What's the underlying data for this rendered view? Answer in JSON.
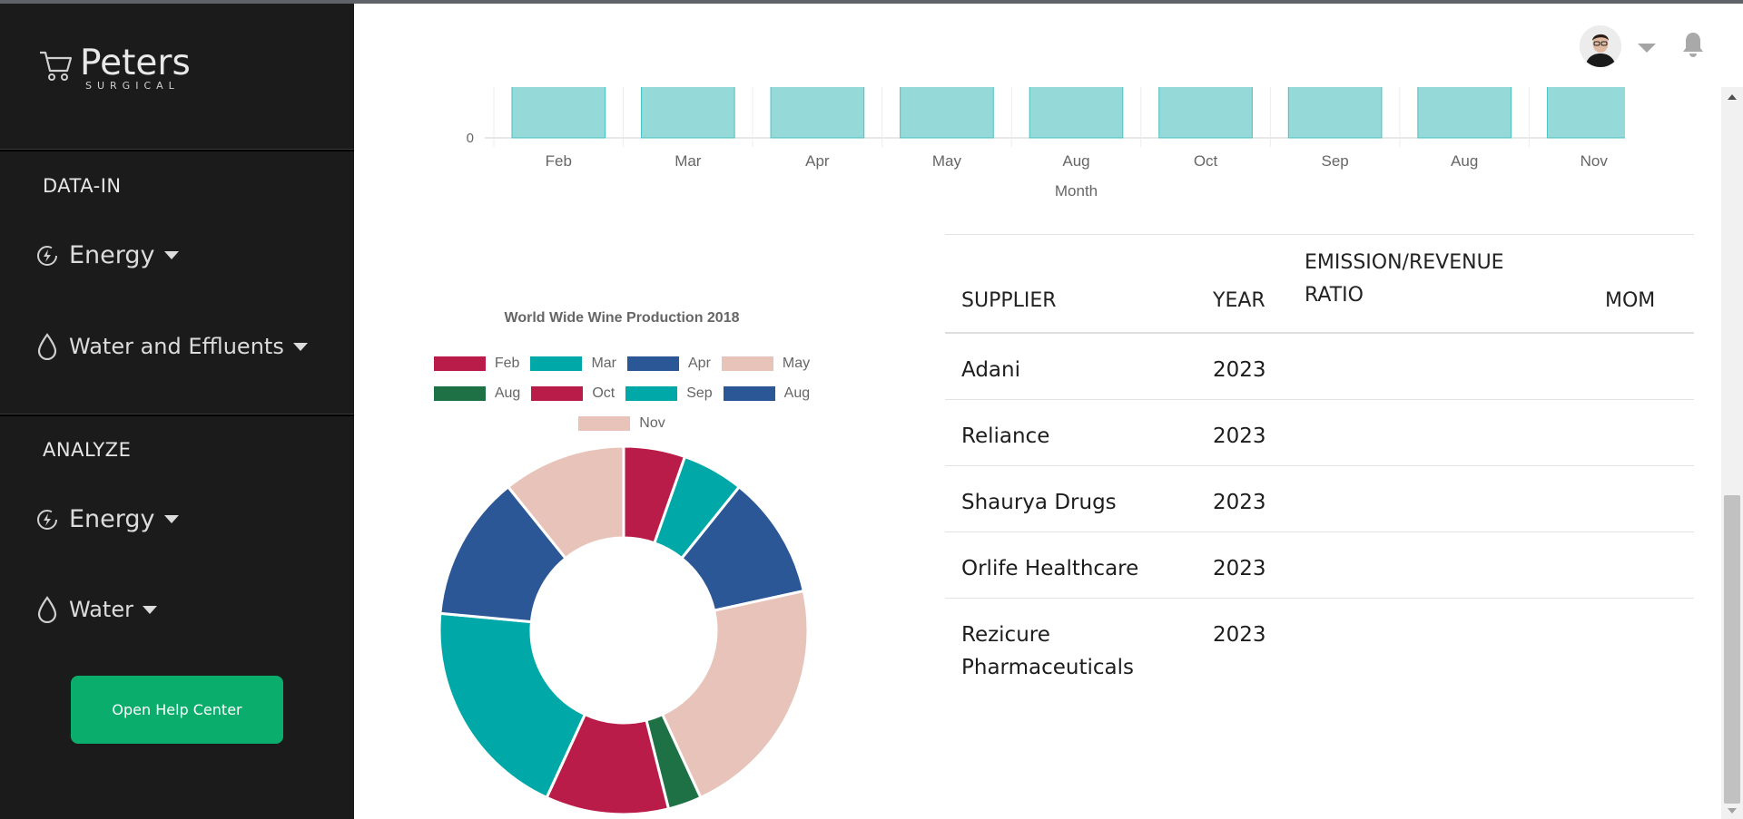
{
  "brand": {
    "name": "Peters",
    "sub": "SURGICAL"
  },
  "sidebar": {
    "sections": [
      {
        "title": "DATA-IN",
        "items": [
          {
            "label": "Energy",
            "icon": "energy-icon"
          },
          {
            "label": "Water and Effluents",
            "icon": "water-drop-icon"
          }
        ]
      },
      {
        "title": "ANALYZE",
        "items": [
          {
            "label": "Energy",
            "icon": "energy-icon"
          },
          {
            "label": "Water",
            "icon": "water-drop-icon"
          }
        ]
      }
    ],
    "help_button": "Open Help Center"
  },
  "header": {
    "avatar": "user-avatar",
    "notifications_icon": "bell-icon"
  },
  "colors": {
    "sidebar_bg": "#1b1b1b",
    "accent": "#0aad6b",
    "bar": "#96d9d9"
  },
  "chart_data": [
    {
      "type": "bar",
      "categories": [
        "Feb",
        "Mar",
        "Apr",
        "May",
        "Aug",
        "Oct",
        "Sep",
        "Aug",
        "Nov"
      ],
      "xlabel": "Month",
      "ytick_visible": [
        "0"
      ]
    },
    {
      "type": "pie",
      "title": "World Wide Wine Production 2018",
      "labels": [
        "Feb",
        "Mar",
        "Apr",
        "May",
        "Aug",
        "Oct",
        "Sep",
        "Aug",
        "Nov"
      ],
      "values": [
        5.5,
        5.5,
        11,
        22,
        3,
        11,
        20,
        13,
        11
      ],
      "colors": [
        "#b91c48",
        "#00a9a8",
        "#2b5797",
        "#e8c3b9",
        "#1e7145",
        "#b91c48",
        "#00a9a8",
        "#2b5797",
        "#e8c3b9"
      ],
      "legend_position": "top"
    }
  ],
  "table": {
    "headers": [
      "SUPPLIER",
      "YEAR",
      "EMISSION/REVENUE RATIO",
      "MOM"
    ],
    "header_ratio_line1": "EMISSION/REVENUE",
    "header_ratio_line2": "RATIO",
    "rows": [
      {
        "supplier": "Adani",
        "year": "2023"
      },
      {
        "supplier": "Reliance",
        "year": "2023"
      },
      {
        "supplier": "Shaurya Drugs",
        "year": "2023"
      },
      {
        "supplier": "Orlife Healthcare",
        "year": "2023"
      },
      {
        "supplier": "Rezicure Pharmaceuticals",
        "year": "2023",
        "supplier_line1": "Rezicure",
        "supplier_line2": "Pharmaceuticals"
      }
    ]
  }
}
